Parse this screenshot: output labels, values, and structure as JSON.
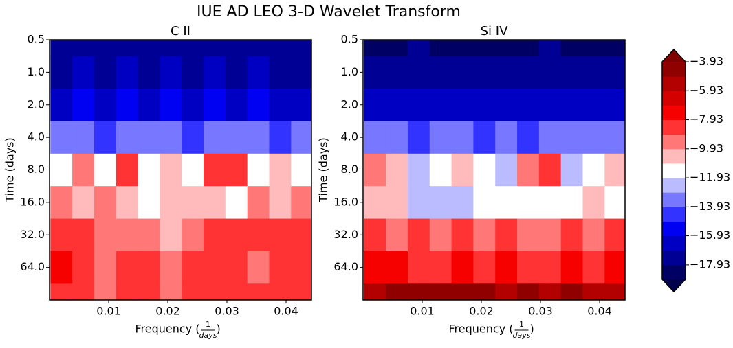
{
  "title": "IUE AD LEO 3-D Wavelet Transform",
  "chart_data": [
    {
      "type": "contour",
      "title": "C II",
      "xlabel": {
        "text": "Frequency (",
        "num": "1",
        "den": "days",
        "close": ")"
      },
      "ylabel": "Time (days)",
      "xlim": [
        0,
        0.0443
      ],
      "ylim": [
        0.5,
        128
      ],
      "yscale": "log2",
      "yinvert": true,
      "xticks": [
        0.01,
        0.02,
        0.03,
        0.04
      ],
      "yticks": [
        0.5,
        {
          "value": 1,
          "label": "1.0"
        },
        {
          "value": 2,
          "label": "2.0"
        },
        {
          "value": 4,
          "label": "4.0"
        },
        {
          "value": 8,
          "label": "8.0"
        },
        {
          "value": 16,
          "label": "16.0"
        },
        {
          "value": 32,
          "label": "32.0"
        },
        {
          "value": 64,
          "label": "64.0"
        }
      ],
      "x": [
        0.002,
        0.0057,
        0.0094,
        0.0131,
        0.0168,
        0.0205,
        0.0242,
        0.0279,
        0.0316,
        0.0353,
        0.039,
        0.0427
      ],
      "y": [
        0.5,
        1,
        2,
        4,
        8,
        16,
        32,
        64,
        128
      ],
      "z": [
        [
          -17.5,
          -17,
          -17.5,
          -17,
          -17.5,
          -17,
          -17.5,
          -17,
          -17.5,
          -17,
          -17.5,
          -17.5
        ],
        [
          -17,
          -16.5,
          -17,
          -16.5,
          -17,
          -16.5,
          -17,
          -16.5,
          -17,
          -16.5,
          -17,
          -17
        ],
        [
          -16,
          -15.5,
          -16,
          -15.5,
          -16,
          -15.5,
          -16,
          -15.5,
          -16,
          -15.5,
          -16,
          -16
        ],
        [
          -13.5,
          -13,
          -14,
          -13,
          -13.5,
          -13,
          -14,
          -13,
          -13.5,
          -13,
          -14,
          -13.5
        ],
        [
          -11,
          -9,
          -11,
          -8.5,
          -11.5,
          -10,
          -11,
          -8.5,
          -8,
          -11,
          -10.5,
          -11
        ],
        [
          -9,
          -10,
          -9.5,
          -10,
          -11,
          -10,
          -10.5,
          -10,
          -11,
          -9.5,
          -10,
          -9.5
        ],
        [
          -8,
          -8.5,
          -9,
          -9.5,
          -9,
          -10,
          -9.5,
          -8,
          -8.5,
          -8,
          -8,
          -8
        ],
        [
          -7.5,
          -8,
          -9,
          -8.5,
          -8,
          -9,
          -8.5,
          -8,
          -8.5,
          -9,
          -8,
          -8.5
        ],
        [
          -8,
          -8.5,
          -9,
          -8.5,
          -8,
          -9,
          -8,
          -8.5,
          -8,
          -8.5,
          -8,
          -8
        ]
      ]
    },
    {
      "type": "contour",
      "title": "Si IV",
      "xlabel": {
        "text": "Frequency (",
        "num": "1",
        "den": "days",
        "close": ")"
      },
      "ylabel": "Time (days)",
      "xlim": [
        0,
        0.0443
      ],
      "ylim": [
        0.5,
        128
      ],
      "yscale": "log2",
      "yinvert": true,
      "xticks": [
        0.01,
        0.02,
        0.03,
        0.04
      ],
      "yticks": [
        0.5,
        {
          "value": 1,
          "label": "1.0"
        },
        {
          "value": 2,
          "label": "2.0"
        },
        {
          "value": 4,
          "label": "4.0"
        },
        {
          "value": 8,
          "label": "8.0"
        },
        {
          "value": 16,
          "label": "16.0"
        },
        {
          "value": 32,
          "label": "32.0"
        },
        {
          "value": 64,
          "label": "64.0"
        }
      ],
      "x": [
        0.002,
        0.0057,
        0.0094,
        0.0131,
        0.0168,
        0.0205,
        0.0242,
        0.0279,
        0.0316,
        0.0353,
        0.039,
        0.0427
      ],
      "y": [
        0.5,
        1,
        2,
        4,
        8,
        16,
        32,
        64,
        128
      ],
      "z": [
        [
          -18,
          -18,
          -17.5,
          -18,
          -18,
          -18,
          -18,
          -18,
          -17.5,
          -18,
          -18,
          -18
        ],
        [
          -17.5,
          -17,
          -17.5,
          -17.5,
          -17,
          -17.5,
          -17.5,
          -17,
          -17.5,
          -17.5,
          -17.5,
          -17.5
        ],
        [
          -16.5,
          -16,
          -16.5,
          -16,
          -16.5,
          -16,
          -16.5,
          -16,
          -16.5,
          -16,
          -16.5,
          -16.5
        ],
        [
          -13.5,
          -13,
          -14,
          -13.5,
          -13,
          -14,
          -13,
          -14,
          -13,
          -13.5,
          -13,
          -13.5
        ],
        [
          -9.5,
          -10,
          -12,
          -11,
          -10.5,
          -11,
          -12,
          -9,
          -8,
          -12,
          -11,
          -10.5
        ],
        [
          -10,
          -10,
          -12,
          -12,
          -12,
          -11,
          -11.5,
          -11,
          -11,
          -11,
          -10.5,
          -11
        ],
        [
          -8,
          -9,
          -8.5,
          -9,
          -8,
          -9,
          -8,
          -9,
          -9.5,
          -8,
          -9,
          -8.5
        ],
        [
          -7,
          -7.5,
          -8,
          -8,
          -7.5,
          -8,
          -7.5,
          -8,
          -8,
          -7.5,
          -8,
          -7.5
        ],
        [
          -5,
          -4.5,
          -4.5,
          -4.5,
          -4.5,
          -4.5,
          -5,
          -4.5,
          -5,
          -4.5,
          -5,
          -5
        ]
      ]
    }
  ],
  "colorbar": {
    "colormap": "seismic",
    "clim": [
      -18.93,
      -3.93
    ],
    "levels": 15,
    "extend": "both",
    "ticks": [
      {
        "value": -3.93,
        "label": "−3.93"
      },
      {
        "value": -5.93,
        "label": "−5.93"
      },
      {
        "value": -7.93,
        "label": "−7.93"
      },
      {
        "value": -9.93,
        "label": "−9.93"
      },
      {
        "value": -11.93,
        "label": "−11.93"
      },
      {
        "value": -13.93,
        "label": "−13.93"
      },
      {
        "value": -15.93,
        "label": "−15.93"
      },
      {
        "value": -17.93,
        "label": "−17.93"
      }
    ]
  }
}
